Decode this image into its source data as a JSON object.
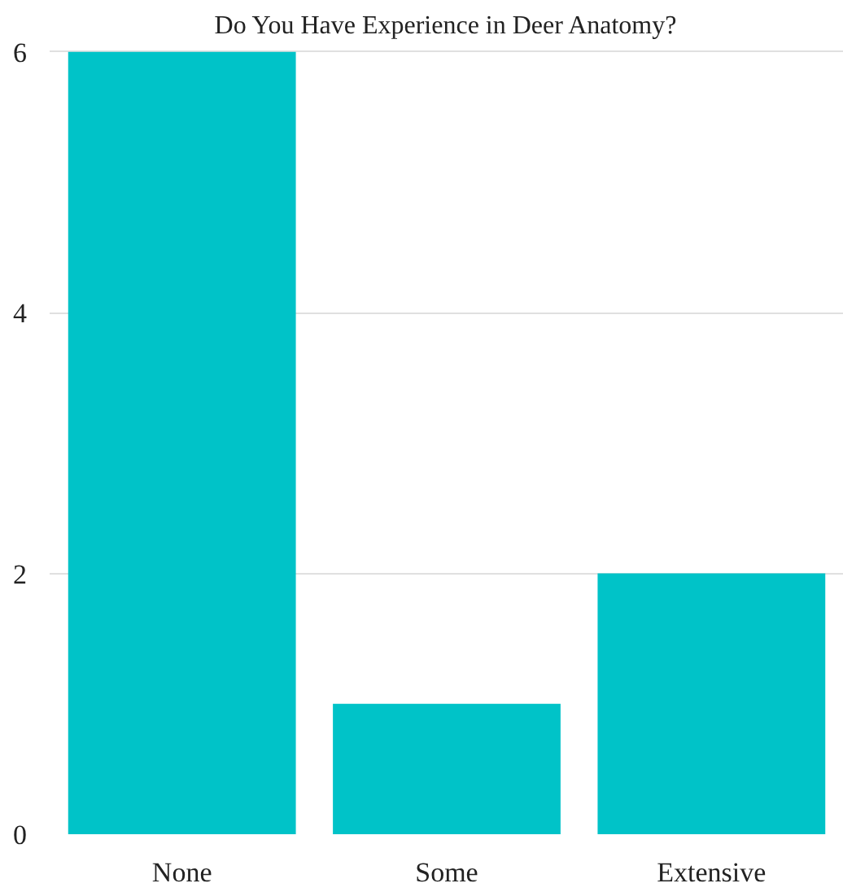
{
  "chart_data": {
    "type": "bar",
    "title": "Do You Have Experience in Deer Anatomy?",
    "categories": [
      "None",
      "Some",
      "Extensive"
    ],
    "values": [
      6,
      1,
      2
    ],
    "color": "#00c3c8",
    "ylim": [
      0,
      6
    ],
    "yticks": [
      0,
      2,
      4,
      6
    ],
    "grid": "y"
  }
}
